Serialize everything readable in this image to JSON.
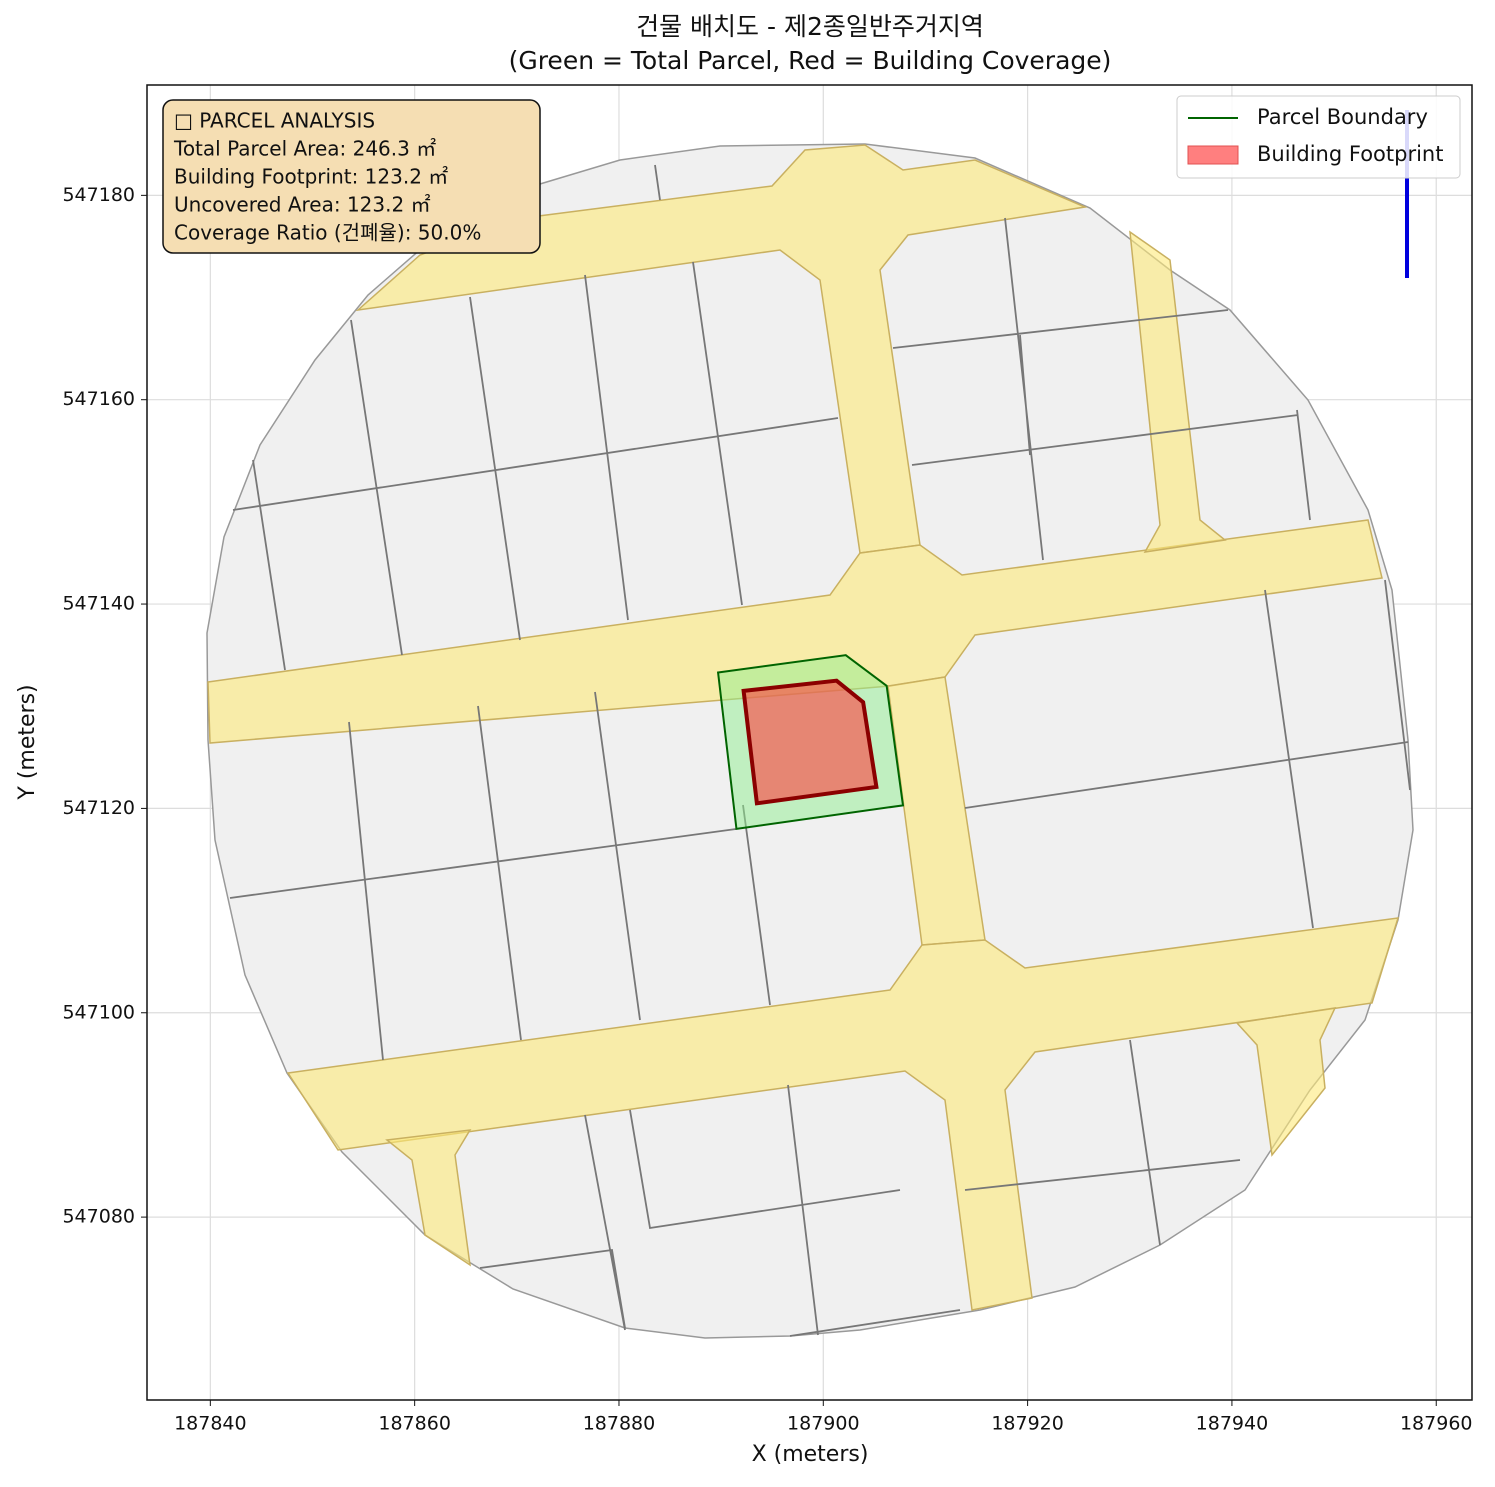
{
  "chart_data": {
    "type": "polygon",
    "title": "건물 배치도 - 제2종일반주거지역",
    "subtitle": "(Green = Total Parcel, Red = Building Coverage)",
    "xlabel": "X (meters)",
    "ylabel": "Y (meters)",
    "xlim": [
      187833.8,
      187963.5
    ],
    "ylim": [
      547062.1,
      547190.8
    ],
    "xticks": [
      187840,
      187860,
      187880,
      187900,
      187920,
      187940,
      187960
    ],
    "yticks": [
      547080,
      547100,
      547120,
      547140,
      547160,
      547180
    ],
    "grid": true,
    "legend": "upper right",
    "info_box": [
      "□ PARCEL ANALYSIS",
      "Total Parcel Area: 246.3 ㎡",
      "Building Footprint: 123.2 ㎡",
      "Uncovered Area: 123.2 ㎡",
      "Coverage Ratio (건폐율): 50.0%"
    ],
    "series": [
      {
        "name": "Parcel Boundary",
        "color": "#006400",
        "x": [
          187889.7,
          187902.2,
          187906.2,
          187907.8,
          187891.5
        ],
        "y": [
          547133.3,
          547135.0,
          547132.0,
          547120.3,
          547118.0
        ]
      },
      {
        "name": "Building Footprint",
        "color": "#8b0000",
        "x": [
          187892.2,
          187901.3,
          187903.9,
          187905.2,
          187893.5
        ],
        "y": [
          547131.5,
          547132.5,
          547130.4,
          547122.1,
          547120.5
        ]
      }
    ]
  }
}
